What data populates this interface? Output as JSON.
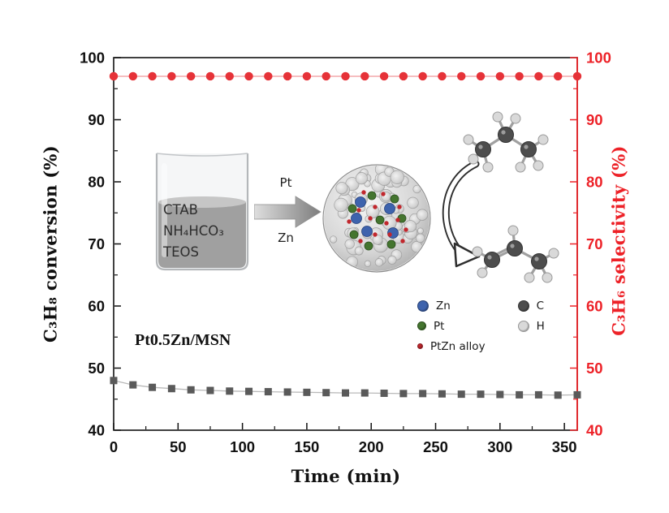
{
  "chart_data": {
    "type": "line",
    "title": "",
    "xlabel": "Time (min)",
    "ylabel_left": "C₃H₈ conversion (%)",
    "ylabel_right": "C₃H₆ selectivity (%)",
    "xlim": [
      0,
      360
    ],
    "ylim": [
      40,
      100
    ],
    "x_ticks": [
      0,
      50,
      100,
      150,
      200,
      250,
      300,
      350
    ],
    "y_ticks": [
      40,
      50,
      60,
      70,
      80,
      90,
      100
    ],
    "x_minor_step": 25,
    "y_minor_step": 5,
    "grid": false,
    "x": [
      0,
      15,
      30,
      45,
      60,
      75,
      90,
      105,
      120,
      135,
      150,
      165,
      180,
      195,
      210,
      225,
      240,
      255,
      270,
      285,
      300,
      315,
      330,
      345,
      360
    ],
    "series": [
      {
        "name": "C₃H₈ conversion",
        "axis": "left",
        "marker": "square",
        "marker_color": "#5a5a5a",
        "line_color": "#b9b9b9",
        "values": [
          48.0,
          47.3,
          46.9,
          46.7,
          46.5,
          46.4,
          46.3,
          46.25,
          46.2,
          46.15,
          46.1,
          46.05,
          46.0,
          46.0,
          45.95,
          45.9,
          45.9,
          45.85,
          45.8,
          45.8,
          45.75,
          45.7,
          45.7,
          45.65,
          45.7
        ]
      },
      {
        "name": "C₃H₆ selectivity",
        "axis": "right",
        "marker": "circle",
        "marker_color": "#e63238",
        "line_color": "#f0989b",
        "values": [
          97,
          97,
          97,
          97,
          97,
          97,
          97,
          97,
          97,
          97,
          97,
          97,
          97,
          97,
          97,
          97,
          97,
          97,
          97,
          97,
          97,
          97,
          97,
          97,
          97
        ]
      }
    ],
    "axis_colors": {
      "left": "#111111",
      "right": "#ed2228"
    }
  },
  "inset": {
    "beaker_lines": [
      "CTAB",
      "NH₄HCO₃",
      "TEOS"
    ],
    "arrow_label_top": "Pt",
    "arrow_label_bottom": "Zn",
    "catalyst_label": "Pt0.5Zn/MSN",
    "legend": [
      {
        "label": "Zn",
        "color": "#3e63ad"
      },
      {
        "label": "Pt",
        "color": "#44752f"
      },
      {
        "label": "PtZn alloy",
        "color": "#c1272d"
      },
      {
        "label": "C",
        "color": "#4d4d4d"
      },
      {
        "label": "H",
        "color": "#d9d9d9"
      }
    ]
  }
}
